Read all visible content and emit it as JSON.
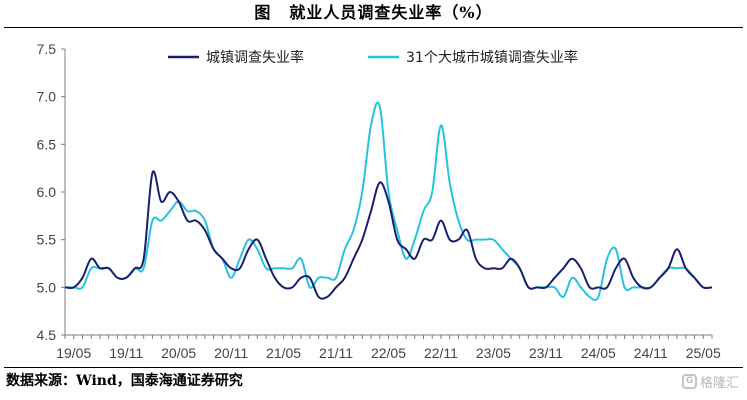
{
  "figure": {
    "label": "图",
    "title": "就业人员调查失业率（%）"
  },
  "source": "数据来源：Wind，国泰海通证券研究",
  "watermark": {
    "icon": "gelonghui-logo-icon",
    "text": "格隆汇"
  },
  "chart_data": {
    "type": "line",
    "title": "",
    "xlabel": "",
    "ylabel": "",
    "ylim": [
      4.5,
      7.5
    ],
    "yticks": [
      "4.5",
      "5.0",
      "5.5",
      "6.0",
      "6.5",
      "7.0",
      "7.5"
    ],
    "x_tick_labels": [
      "19/05",
      "19/11",
      "20/05",
      "20/11",
      "21/05",
      "21/11",
      "22/05",
      "22/11",
      "23/05",
      "23/11",
      "24/05",
      "24/11",
      "25/05"
    ],
    "legend_placement": "top",
    "grid": false,
    "x": [
      "19/04",
      "19/05",
      "19/06",
      "19/07",
      "19/08",
      "19/09",
      "19/10",
      "19/11",
      "19/12",
      "20/01",
      "20/02",
      "20/03",
      "20/04",
      "20/05",
      "20/06",
      "20/07",
      "20/08",
      "20/09",
      "20/10",
      "20/11",
      "20/12",
      "21/01",
      "21/02",
      "21/03",
      "21/04",
      "21/05",
      "21/06",
      "21/07",
      "21/08",
      "21/09",
      "21/10",
      "21/11",
      "21/12",
      "22/01",
      "22/02",
      "22/03",
      "22/04",
      "22/05",
      "22/06",
      "22/07",
      "22/08",
      "22/09",
      "22/10",
      "22/11",
      "22/12",
      "23/01",
      "23/02",
      "23/03",
      "23/04",
      "23/05",
      "23/06",
      "23/07",
      "23/08",
      "23/09",
      "23/10",
      "23/11",
      "23/12",
      "24/01",
      "24/02",
      "24/03",
      "24/04",
      "24/05",
      "24/06",
      "24/07",
      "24/08",
      "24/09",
      "24/10",
      "24/11",
      "24/12",
      "25/01",
      "25/02",
      "25/03",
      "25/04",
      "25/05",
      "25/06"
    ],
    "series": [
      {
        "name": "城镇调查失业率",
        "color": "#1a1f6e",
        "values": [
          5.0,
          5.0,
          5.1,
          5.3,
          5.2,
          5.2,
          5.1,
          5.1,
          5.2,
          5.3,
          6.2,
          5.9,
          6.0,
          5.9,
          5.7,
          5.7,
          5.6,
          5.4,
          5.3,
          5.2,
          5.2,
          5.4,
          5.5,
          5.3,
          5.1,
          5.0,
          5.0,
          5.1,
          5.1,
          4.9,
          4.9,
          5.0,
          5.1,
          5.3,
          5.5,
          5.8,
          6.1,
          5.9,
          5.5,
          5.4,
          5.3,
          5.5,
          5.5,
          5.7,
          5.5,
          5.5,
          5.6,
          5.3,
          5.2,
          5.2,
          5.2,
          5.3,
          5.2,
          5.0,
          5.0,
          5.0,
          5.1,
          5.2,
          5.3,
          5.2,
          5.0,
          5.0,
          5.0,
          5.2,
          5.3,
          5.1,
          5.0,
          5.0,
          5.1,
          5.2,
          5.4,
          5.2,
          5.1,
          5.0,
          5.0
        ]
      },
      {
        "name": "31个大城市城镇调查失业率",
        "color": "#27c3dd",
        "values": [
          5.0,
          5.0,
          5.0,
          5.2,
          5.2,
          5.2,
          5.1,
          5.1,
          5.2,
          5.2,
          5.7,
          5.7,
          5.8,
          5.9,
          5.8,
          5.8,
          5.7,
          5.4,
          5.3,
          5.1,
          5.3,
          5.5,
          5.4,
          5.2,
          5.2,
          5.2,
          5.2,
          5.3,
          5.0,
          5.1,
          5.1,
          5.1,
          5.4,
          5.6,
          6.0,
          6.7,
          6.9,
          6.0,
          5.6,
          5.3,
          5.5,
          5.8,
          6.0,
          6.7,
          6.1,
          5.7,
          5.5,
          5.5,
          5.5,
          5.5,
          5.4,
          5.3,
          5.2,
          5.0,
          5.0,
          5.0,
          5.0,
          4.9,
          5.1,
          5.0,
          4.9,
          4.9,
          5.3,
          5.4,
          5.0,
          5.0,
          5.0,
          5.0,
          5.1,
          5.2,
          5.2,
          5.2,
          5.1,
          5.0,
          5.0
        ]
      }
    ]
  }
}
